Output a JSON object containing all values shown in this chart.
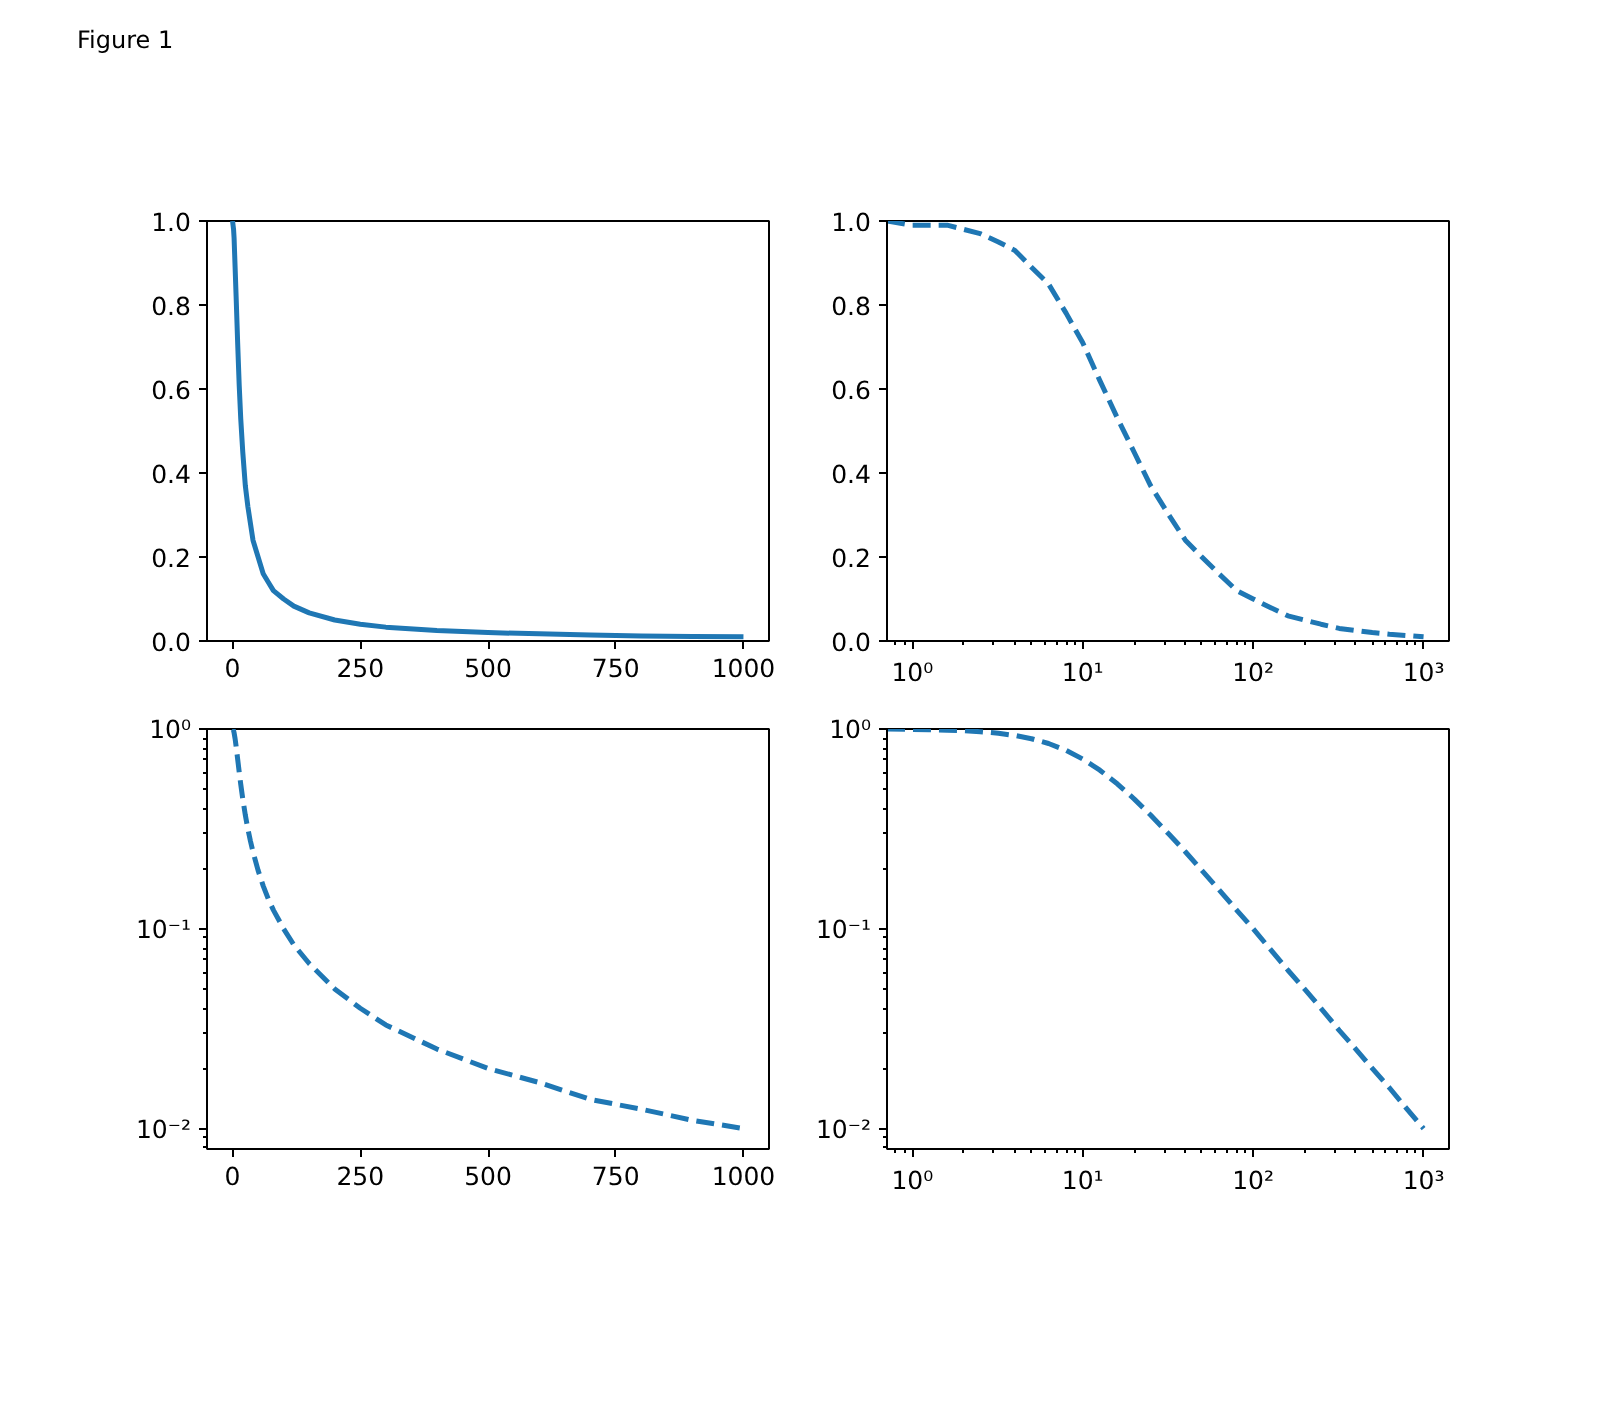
{
  "chart_data": [
    {
      "type": "other",
      "title": "Figure 1"
    },
    {
      "type": "line",
      "x": [
        0,
        1,
        2,
        3,
        5,
        7,
        10,
        13,
        16,
        20,
        25,
        30,
        35,
        40,
        50,
        60,
        70,
        80,
        100,
        120,
        150,
        200,
        250,
        300,
        400,
        500,
        600,
        700,
        800,
        900,
        1000
      ],
      "values": [
        1.0,
        0.99,
        0.98,
        0.96,
        0.89,
        0.82,
        0.71,
        0.61,
        0.53,
        0.45,
        0.37,
        0.32,
        0.28,
        0.24,
        0.2,
        0.16,
        0.14,
        0.12,
        0.1,
        0.083,
        0.067,
        0.05,
        0.04,
        0.033,
        0.025,
        0.02,
        0.017,
        0.014,
        0.012,
        0.011,
        0.01
      ],
      "color": "#1f77b4",
      "line_style": "solid",
      "xlim": [
        -50,
        1050
      ],
      "ylim": [
        0,
        1
      ],
      "xticks": [
        0,
        250,
        500,
        750,
        1000
      ],
      "yticks": [
        {
          "value": 0,
          "label": "0.0"
        },
        0.2,
        0.4,
        0.6,
        0.8,
        {
          "value": 1,
          "label": "1.0"
        }
      ],
      "grid": false
    },
    {
      "type": "line",
      "log": "x",
      "x": [
        0.71,
        1,
        1.25,
        1.6,
        2,
        2.5,
        3.2,
        4,
        5,
        6.3,
        8,
        10,
        12.6,
        16,
        20,
        25,
        32,
        40,
        50,
        63,
        80,
        100,
        126,
        160,
        200,
        250,
        320,
        400,
        500,
        630,
        800,
        1000
      ],
      "values": [
        1.0,
        0.99,
        0.99,
        0.99,
        0.98,
        0.97,
        0.95,
        0.93,
        0.89,
        0.85,
        0.78,
        0.71,
        0.62,
        0.53,
        0.45,
        0.37,
        0.3,
        0.24,
        0.2,
        0.16,
        0.12,
        0.1,
        0.08,
        0.06,
        0.05,
        0.04,
        0.03,
        0.025,
        0.02,
        0.016,
        0.013,
        0.01
      ],
      "color": "#1f77b4",
      "line_style": "dashed",
      "xlim": [
        0.71,
        1410
      ],
      "ylim": [
        0,
        1
      ],
      "xticks": [
        {
          "value": 0.8,
          "label": null
        },
        {
          "value": 0.9,
          "label": null
        },
        {
          "value": 1,
          "label": "10⁰"
        },
        {
          "value": 2,
          "label": null
        },
        {
          "value": 3,
          "label": null
        },
        {
          "value": 4,
          "label": null
        },
        {
          "value": 5,
          "label": null
        },
        {
          "value": 6,
          "label": null
        },
        {
          "value": 7,
          "label": null
        },
        {
          "value": 8,
          "label": null
        },
        {
          "value": 9,
          "label": null
        },
        {
          "value": 10,
          "label": "10¹"
        },
        {
          "value": 20,
          "label": null
        },
        {
          "value": 30,
          "label": null
        },
        {
          "value": 40,
          "label": null
        },
        {
          "value": 50,
          "label": null
        },
        {
          "value": 60,
          "label": null
        },
        {
          "value": 70,
          "label": null
        },
        {
          "value": 80,
          "label": null
        },
        {
          "value": 90,
          "label": null
        },
        {
          "value": 100,
          "label": "10²"
        },
        {
          "value": 200,
          "label": null
        },
        {
          "value": 300,
          "label": null
        },
        {
          "value": 400,
          "label": null
        },
        {
          "value": 500,
          "label": null
        },
        {
          "value": 600,
          "label": null
        },
        {
          "value": 700,
          "label": null
        },
        {
          "value": 800,
          "label": null
        },
        {
          "value": 900,
          "label": null
        },
        {
          "value": 1000,
          "label": "10³"
        }
      ],
      "yticks": [
        {
          "value": 0,
          "label": "0.0"
        },
        0.2,
        0.4,
        0.6,
        0.8,
        {
          "value": 1,
          "label": "1.0"
        }
      ],
      "grid": false
    },
    {
      "type": "line",
      "log": "y",
      "x": [
        0,
        1,
        2,
        3,
        5,
        7,
        10,
        13,
        16,
        20,
        25,
        30,
        35,
        40,
        50,
        60,
        70,
        80,
        100,
        120,
        150,
        200,
        250,
        300,
        400,
        500,
        600,
        700,
        800,
        900,
        1000
      ],
      "values": [
        1.0,
        0.995,
        0.981,
        0.958,
        0.894,
        0.819,
        0.707,
        0.61,
        0.53,
        0.447,
        0.371,
        0.316,
        0.275,
        0.243,
        0.196,
        0.164,
        0.141,
        0.124,
        0.1,
        0.083,
        0.067,
        0.05,
        0.04,
        0.033,
        0.025,
        0.02,
        0.017,
        0.014,
        0.0125,
        0.011,
        0.01
      ],
      "color": "#1f77b4",
      "line_style": "dashed",
      "xlim": [
        -50,
        1050
      ],
      "ylim": [
        0.0079,
        1
      ],
      "xticks": [
        0,
        250,
        500,
        750,
        1000
      ],
      "yticks": [
        {
          "value": 0.008,
          "label": null
        },
        {
          "value": 0.009,
          "label": null
        },
        {
          "value": 0.01,
          "label": "10⁻²"
        },
        {
          "value": 0.02,
          "label": null
        },
        {
          "value": 0.03,
          "label": null
        },
        {
          "value": 0.04,
          "label": null
        },
        {
          "value": 0.05,
          "label": null
        },
        {
          "value": 0.06,
          "label": null
        },
        {
          "value": 0.07,
          "label": null
        },
        {
          "value": 0.08,
          "label": null
        },
        {
          "value": 0.09,
          "label": null
        },
        {
          "value": 0.1,
          "label": "10⁻¹"
        },
        {
          "value": 0.2,
          "label": null
        },
        {
          "value": 0.3,
          "label": null
        },
        {
          "value": 0.4,
          "label": null
        },
        {
          "value": 0.5,
          "label": null
        },
        {
          "value": 0.6,
          "label": null
        },
        {
          "value": 0.7,
          "label": null
        },
        {
          "value": 0.8,
          "label": null
        },
        {
          "value": 0.9,
          "label": null
        },
        {
          "value": 1,
          "label": "10⁰"
        }
      ],
      "grid": false
    },
    {
      "type": "line",
      "log": "xy",
      "x": [
        0.71,
        1,
        1.25,
        1.6,
        2,
        2.5,
        3.2,
        4,
        5,
        6.3,
        8,
        10,
        12.6,
        16,
        20,
        25,
        32,
        40,
        50,
        63,
        80,
        100,
        126,
        160,
        200,
        250,
        320,
        400,
        500,
        630,
        800,
        1000
      ],
      "values": [
        1.0,
        0.995,
        0.992,
        0.987,
        0.981,
        0.97,
        0.952,
        0.928,
        0.894,
        0.846,
        0.781,
        0.707,
        0.622,
        0.53,
        0.447,
        0.371,
        0.298,
        0.243,
        0.196,
        0.157,
        0.124,
        0.1,
        0.079,
        0.062,
        0.05,
        0.04,
        0.031,
        0.025,
        0.02,
        0.016,
        0.0125,
        0.01
      ],
      "color": "#1f77b4",
      "line_style": "dashed",
      "xlim": [
        0.71,
        1410
      ],
      "ylim": [
        0.0079,
        1
      ],
      "xticks": [
        {
          "value": 0.8,
          "label": null
        },
        {
          "value": 0.9,
          "label": null
        },
        {
          "value": 1,
          "label": "10⁰"
        },
        {
          "value": 2,
          "label": null
        },
        {
          "value": 3,
          "label": null
        },
        {
          "value": 4,
          "label": null
        },
        {
          "value": 5,
          "label": null
        },
        {
          "value": 6,
          "label": null
        },
        {
          "value": 7,
          "label": null
        },
        {
          "value": 8,
          "label": null
        },
        {
          "value": 9,
          "label": null
        },
        {
          "value": 10,
          "label": "10¹"
        },
        {
          "value": 20,
          "label": null
        },
        {
          "value": 30,
          "label": null
        },
        {
          "value": 40,
          "label": null
        },
        {
          "value": 50,
          "label": null
        },
        {
          "value": 60,
          "label": null
        },
        {
          "value": 70,
          "label": null
        },
        {
          "value": 80,
          "label": null
        },
        {
          "value": 90,
          "label": null
        },
        {
          "value": 100,
          "label": "10²"
        },
        {
          "value": 200,
          "label": null
        },
        {
          "value": 300,
          "label": null
        },
        {
          "value": 400,
          "label": null
        },
        {
          "value": 500,
          "label": null
        },
        {
          "value": 600,
          "label": null
        },
        {
          "value": 700,
          "label": null
        },
        {
          "value": 800,
          "label": null
        },
        {
          "value": 900,
          "label": null
        },
        {
          "value": 1000,
          "label": "10³"
        }
      ],
      "yticks": [
        {
          "value": 0.008,
          "label": null
        },
        {
          "value": 0.009,
          "label": null
        },
        {
          "value": 0.01,
          "label": "10⁻²"
        },
        {
          "value": 0.02,
          "label": null
        },
        {
          "value": 0.03,
          "label": null
        },
        {
          "value": 0.04,
          "label": null
        },
        {
          "value": 0.05,
          "label": null
        },
        {
          "value": 0.06,
          "label": null
        },
        {
          "value": 0.07,
          "label": null
        },
        {
          "value": 0.08,
          "label": null
        },
        {
          "value": 0.09,
          "label": null
        },
        {
          "value": 0.1,
          "label": "10⁻¹"
        },
        {
          "value": 0.2,
          "label": null
        },
        {
          "value": 0.3,
          "label": null
        },
        {
          "value": 0.4,
          "label": null
        },
        {
          "value": 0.5,
          "label": null
        },
        {
          "value": 0.6,
          "label": null
        },
        {
          "value": 0.7,
          "label": null
        },
        {
          "value": 0.8,
          "label": null
        },
        {
          "value": 0.9,
          "label": null
        },
        {
          "value": 1,
          "label": "10⁰"
        }
      ],
      "grid": false
    }
  ]
}
